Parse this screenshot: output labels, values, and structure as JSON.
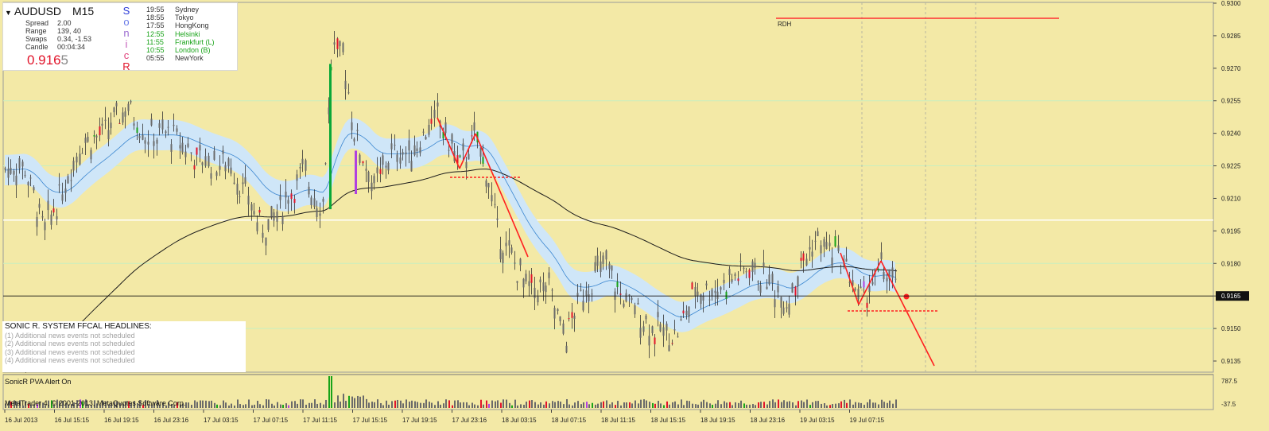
{
  "symbol": {
    "name": "AUDUSD",
    "timeframe": "M15"
  },
  "stats": [
    {
      "label": "Spread",
      "value": "2.00"
    },
    {
      "label": "Range",
      "value": "139, 40"
    },
    {
      "label": "Swaps",
      "value": "0.34, -1.53"
    },
    {
      "label": "Candle",
      "value": "00:04:34"
    }
  ],
  "current_price": {
    "main": "0.916",
    "last_digit": "5"
  },
  "sonic_letters": [
    {
      "char": "S",
      "color": "#2c3bd8"
    },
    {
      "char": "o",
      "color": "#6a7be8"
    },
    {
      "char": "n",
      "color": "#9a6ad0"
    },
    {
      "char": "i",
      "color": "#c35ab8"
    },
    {
      "char": "c",
      "color": "#e0407a"
    },
    {
      "char": "R",
      "color": "#e1142a"
    }
  ],
  "sessions": [
    {
      "time": "19:55",
      "city": "Sydney",
      "color": "#333333"
    },
    {
      "time": "18:55",
      "city": "Tokyo",
      "color": "#333333"
    },
    {
      "time": "17:55",
      "city": "HongKong",
      "color": "#333333"
    },
    {
      "time": "12:55",
      "city": "Helsinki",
      "color": "#18a318"
    },
    {
      "time": "11:55",
      "city": "Frankfurt  (L)",
      "color": "#18a318"
    },
    {
      "time": "10:55",
      "city": "London  (B)",
      "color": "#18a318"
    },
    {
      "time": "05:55",
      "city": "NewYork",
      "color": "#333333"
    }
  ],
  "news": {
    "header": "SONIC R. SYSTEM  FFCAL HEADLINES:",
    "items": [
      "(1)  Additional news events not scheduled",
      "(2)  Additional news events not scheduled",
      "(3)  Additional news events not scheduled",
      "(4)  Additional news events not scheduled"
    ]
  },
  "rdh_label": "RDH",
  "price_axis": [
    "0.9300",
    "0.9285",
    "0.9270",
    "0.9255",
    "0.9240",
    "0.9225",
    "0.9210",
    "0.9195",
    "0.9180",
    "0.9165",
    "0.9150",
    "0.9135"
  ],
  "current_price_tag": "0.9165",
  "time_axis": [
    "16 Jul 2013",
    "16 Jul 15:15",
    "16 Jul 19:15",
    "16 Jul 23:16",
    "17 Jul 03:15",
    "17 Jul 07:15",
    "17 Jul 11:15",
    "17 Jul 15:15",
    "17 Jul 19:15",
    "17 Jul 23:16",
    "18 Jul 03:15",
    "18 Jul 07:15",
    "18 Jul 11:15",
    "18 Jul 15:15",
    "18 Jul 19:15",
    "18 Jul 23:16",
    "19 Jul 03:15",
    "19 Jul 07:15"
  ],
  "sub_window": {
    "label": "SonicR PVA   Alert On",
    "max_label": "787.5",
    "min_label": "-37.5"
  },
  "copyright": "MetaTrader 4, © 2001-2013, MetaQuotes Software Corp.",
  "colors": {
    "background": "#f3e9a6",
    "bull": "#18a318",
    "bear": "#e1142a",
    "climax_bull": "#0aa838",
    "climax_bear": "#b040e0",
    "dragon": "#cfe6f8",
    "ema": "#1a1a1a",
    "trendline": "#ff2020"
  }
}
